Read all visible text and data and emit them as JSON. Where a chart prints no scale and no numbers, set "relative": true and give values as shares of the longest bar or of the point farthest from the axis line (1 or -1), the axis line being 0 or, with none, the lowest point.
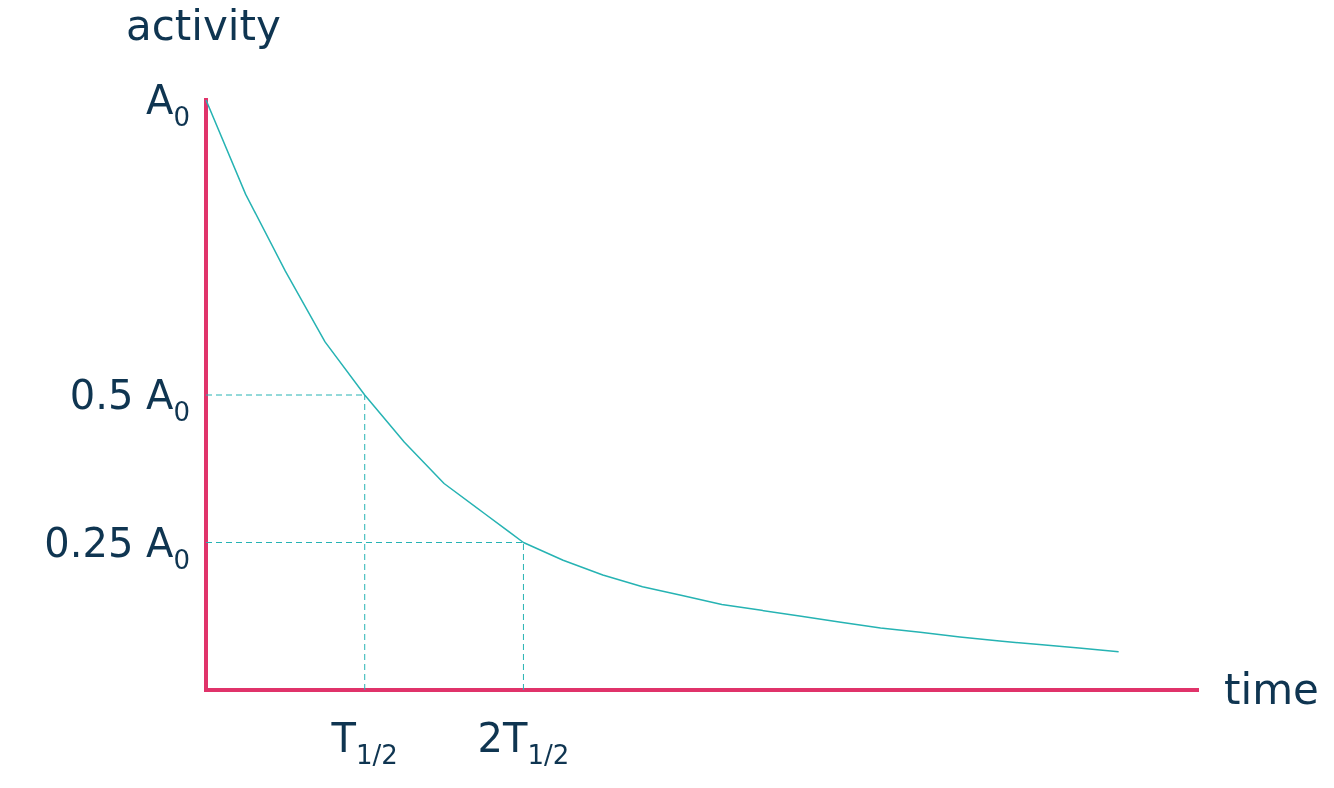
{
  "chart_data": {
    "type": "line",
    "relative": true,
    "xlabel": "time",
    "ylabel": "activity",
    "marker": "none",
    "line_style": "solid",
    "categories": [
      null,
      null,
      null,
      null,
      "T$_{1/2}$",
      null,
      null,
      null,
      "2T$_{1/2}$",
      null,
      null,
      null,
      null,
      null,
      null,
      null,
      null,
      null,
      null,
      null,
      null,
      null,
      null,
      null,
      null,
      null
    ],
    "series": [
      {
        "color": "#26b3b3",
        "values": [
          1,
          0.84,
          0.71,
          0.59,
          0.5,
          0.42,
          0.35,
          0.3,
          0.25,
          0.22,
          0.195,
          0.175,
          0.16,
          0.145,
          0.135,
          0.125,
          0.115,
          0.105,
          0.098,
          0.09,
          0.083,
          0.077,
          0.071,
          0.065,
          null,
          null
        ]
      }
    ],
    "annotations": [
      "A$_{0}$"
    ],
    "ref_lines": [
      {
        "axis": "y",
        "value": 0.5,
        "label": "0.5 A$_{0}$",
        "line_style": "dashed",
        "color": "#26b3b3"
      },
      {
        "axis": "y",
        "value": 0.25,
        "label": "0.25 A$_{0}$",
        "line_style": "dashed",
        "color": "#26b3b3"
      },
      {
        "axis": "x",
        "value": "T$_{1/2}$",
        "line_style": "dashed",
        "color": "#26b3b3"
      },
      {
        "axis": "x",
        "value": "2T$_{1/2}$",
        "line_style": "dashed",
        "color": "#26b3b3"
      }
    ]
  }
}
